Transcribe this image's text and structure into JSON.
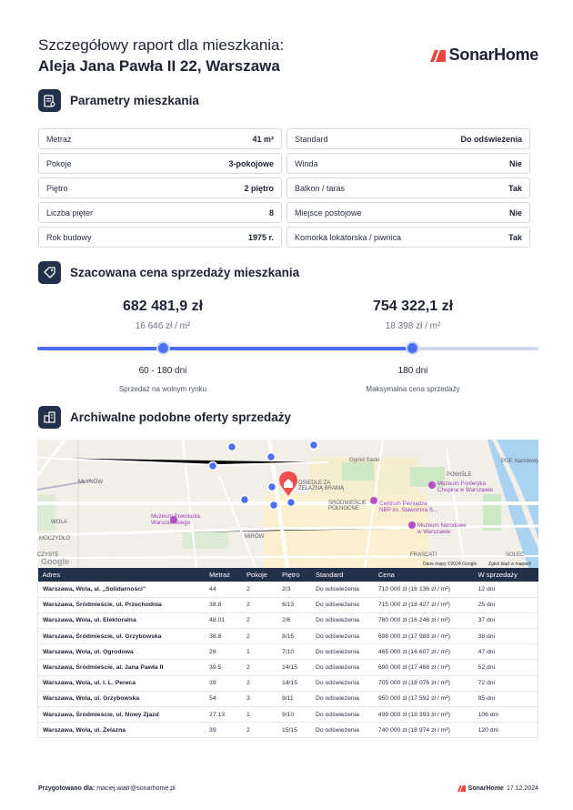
{
  "header": {
    "title_line1": "Szczegółowy raport dla mieszkania:",
    "title_line2": "Aleja Jana Pawła II 22, Warszawa",
    "brand": "SonarHome",
    "brand_color": "#e8453c",
    "accent": "#4c6ef5",
    "navy": "#22304a"
  },
  "params_section": {
    "title": "Parametry mieszkania",
    "icon": "document-icon",
    "left": [
      {
        "k": "Metraż",
        "v": "41 m²"
      },
      {
        "k": "Pokoje",
        "v": "3-pokojowe"
      },
      {
        "k": "Piętro",
        "v": "2 piętro"
      },
      {
        "k": "Liczba pięter",
        "v": "8"
      },
      {
        "k": "Rok budowy",
        "v": "1975 r."
      }
    ],
    "right": [
      {
        "k": "Standard",
        "v": "Do odświeżenia"
      },
      {
        "k": "Winda",
        "v": "Nie"
      },
      {
        "k": "Balkon / taras",
        "v": "Tak"
      },
      {
        "k": "Miejsce postojowe",
        "v": "Nie"
      },
      {
        "k": "Komórka lokatorska / piwnica",
        "v": "Tak"
      }
    ]
  },
  "price_section": {
    "title": "Szacowana cena sprzedaży mieszkania",
    "icon": "price-tag-icon",
    "market": {
      "price": "682 481,9 zł",
      "per_m2": "16 646 zł / m²",
      "days": "60 - 180 dni",
      "caption": "Sprzedaż na wolnym rynku"
    },
    "max": {
      "price": "754 322,1 zł",
      "per_m2": "18 398 zł / m²",
      "days": "180 dni",
      "caption": "Maksymalna cena sprzedaży"
    }
  },
  "offers_section": {
    "title": "Archiwalne podobne oferty sprzedaży",
    "icon": "building-icon",
    "map": {
      "labels": [
        "MŁYNÓW",
        "WOLA",
        "MIRÓW",
        "POWIŚLE",
        "FRASCATI",
        "SOLEC",
        "CZYSTE",
        "MOCZYDŁO",
        "Muzeum Powstania Warszawskiego",
        "Muzeum Fryderyka Chopina w Warszawie",
        "Centrum Pieniądza NBP im. Sławomira S...",
        "Muzeum Narodowe w Warszawie",
        "Ogród Saski",
        "ŚRÓDMIEŚCIE PÓŁNOCNE",
        "OSIEDLE ZA ŻELAZNĄ BRAMĄ",
        "PGE Narodowy",
        "Google"
      ],
      "attribution": "Dane mapy ©2024 Google",
      "report": "Zgłoś błąd w mapach"
    },
    "columns": [
      "Adres",
      "Metraż",
      "Pokoje",
      "Piętro",
      "Standard",
      "Cena",
      "W sprzedaży"
    ],
    "rows": [
      [
        "Warszawa, Wola, al. „Solidarności”",
        "44",
        "2",
        "2/3",
        "Do odświeżenia",
        "710 000 zł (16 136 zł / m²)",
        "12 dni"
      ],
      [
        "Warszawa, Śródmieście, ul. Przechodnia",
        "38.8",
        "2",
        "6/13",
        "Do odświeżenia",
        "715 000 zł (18 427 zł / m²)",
        "25 dni"
      ],
      [
        "Warszawa, Wola, ul. Elektoralna",
        "48.01",
        "2",
        "2/6",
        "Do odświeżenia",
        "780 000 zł (16 246 zł / m²)",
        "37 dni"
      ],
      [
        "Warszawa, Śródmieście, ul. Grzybowska",
        "38.8",
        "2",
        "8/15",
        "Do odświeżenia",
        "698 000 zł (17 989 zł / m²)",
        "38 dni"
      ],
      [
        "Warszawa, Wola, ul. Ogrodowa",
        "28",
        "1",
        "7/10",
        "Do odświeżenia",
        "465 000 zł (16 607 zł / m²)",
        "47 dni"
      ],
      [
        "Warszawa, Śródmieście, al. Jana Pawła II",
        "39.5",
        "2",
        "14/15",
        "Do odświeżenia",
        "690 000 zł (17 468 zł / m²)",
        "52 dni"
      ],
      [
        "Warszawa, Wola, ul. I. L. Pereca",
        "39",
        "2",
        "14/15",
        "Do odświeżenia",
        "705 000 zł (18 076 zł / m²)",
        "72 dni"
      ],
      [
        "Warszawa, Wola, ul. Grzybowska",
        "54",
        "3",
        "9/11",
        "Do odświeżenia",
        "950 000 zł (17 592 zł / m²)",
        "85 dni"
      ],
      [
        "Warszawa, Śródmieście, ul. Nowy Zjazd",
        "27.13",
        "1",
        "9/10",
        "Do odświeżenia",
        "499 000 zł (18 393 zł / m²)",
        "106 dni"
      ],
      [
        "Warszawa, Wola, ul. Żelazna",
        "39",
        "2",
        "15/15",
        "Do odświeżenia",
        "740 000 zł (18 974 zł / m²)",
        "120 dni"
      ]
    ]
  },
  "footer": {
    "prepared_label": "Przygotowano dla:",
    "prepared_email": "maciej.wiatr@sonarhome.pl",
    "brand": "SonarHome",
    "date": "17.12.2024"
  }
}
